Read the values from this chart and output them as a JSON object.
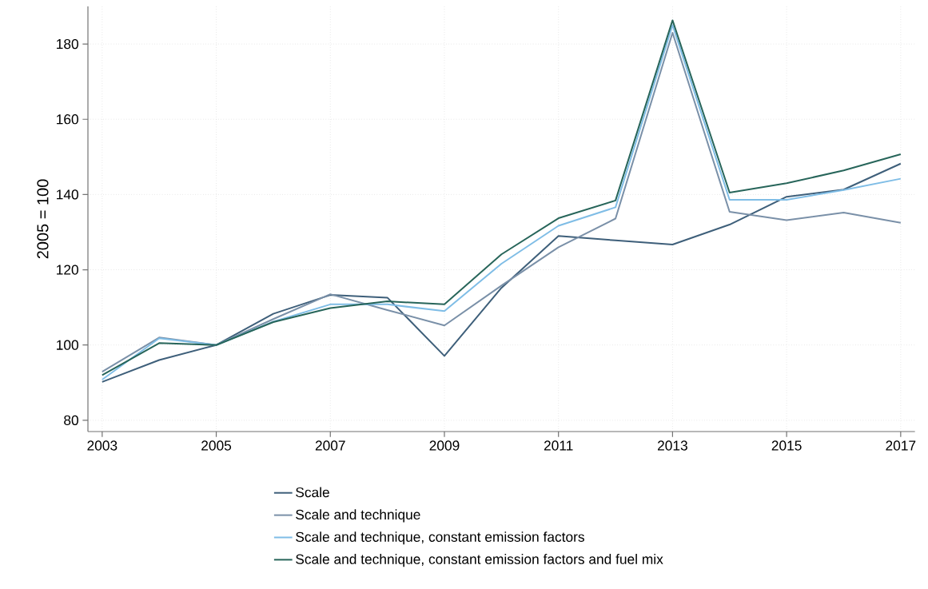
{
  "chart_data": {
    "type": "line",
    "ylabel": "2005 = 100",
    "x": [
      2003,
      2004,
      2005,
      2006,
      2007,
      2008,
      2009,
      2010,
      2011,
      2012,
      2013,
      2014,
      2015,
      2016,
      2017
    ],
    "series": [
      {
        "name": "Scale",
        "color": "#3e5f7a",
        "values": [
          90.2,
          96,
          100,
          108.3,
          113.3,
          112.6,
          97.1,
          115.2,
          129,
          127.8,
          126.7,
          132,
          139.4,
          141.3,
          148.2
        ]
      },
      {
        "name": "Scale and technique",
        "color": "#7a90a8",
        "values": [
          92.9,
          102,
          100,
          106.9,
          113.5,
          109.3,
          105.2,
          115.8,
          126,
          133.6,
          183,
          135.4,
          133.2,
          135.2,
          132.5
        ]
      },
      {
        "name": "Scale and technique, constant emission factors",
        "color": "#7fbde6",
        "values": [
          90.8,
          101.8,
          100,
          106.2,
          110.8,
          110.8,
          109,
          121.6,
          131.7,
          136.6,
          185,
          138.6,
          138.6,
          141.2,
          144.2
        ]
      },
      {
        "name": "Scale and technique, constant emission factors and fuel mix",
        "color": "#27655a",
        "values": [
          92,
          100.5,
          100,
          106.1,
          109.8,
          111.6,
          110.8,
          124.1,
          133.7,
          138.4,
          186.3,
          140.5,
          143,
          146.4,
          150.7
        ]
      }
    ],
    "xlim": [
      2002.75,
      2017.25
    ],
    "ylim": [
      77,
      190
    ],
    "xticks": [
      2003,
      2005,
      2007,
      2009,
      2011,
      2013,
      2015,
      2017
    ],
    "yticks": [
      80,
      100,
      120,
      140,
      160,
      180
    ],
    "grid": true,
    "legend": "bottom",
    "marker": "none",
    "line_style": "solid"
  }
}
